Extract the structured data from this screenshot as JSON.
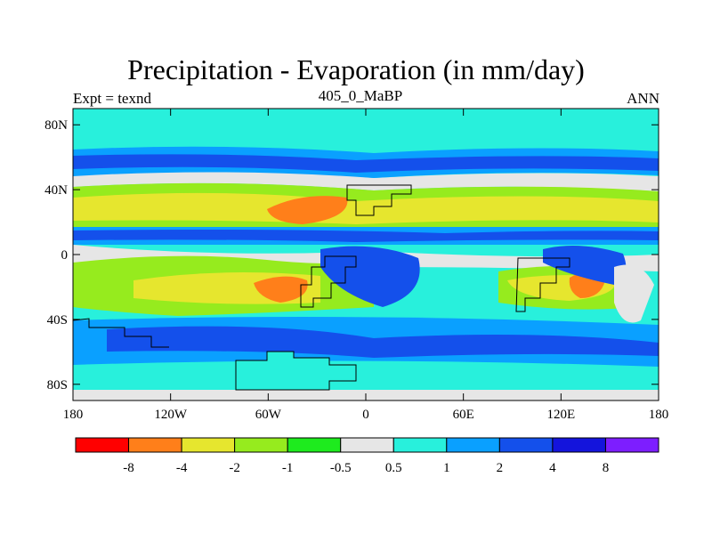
{
  "header": {
    "title": "Precipitation - Evaporation (in mm/day)",
    "left_label": "Expt = texnd",
    "center_label": "405_0_MaBP",
    "right_label": "ANN"
  },
  "chart_data": {
    "type": "heatmap",
    "title": "Precipitation - Evaporation (in mm/day)",
    "subtitle": "405_0_MaBP",
    "x_ticks": [
      "180",
      "120W",
      "60W",
      "0",
      "60E",
      "120E",
      "180"
    ],
    "y_ticks": [
      "80N",
      "40N",
      "0",
      "40S",
      "80S"
    ],
    "x_range": [
      -180,
      180
    ],
    "y_range": [
      -90,
      90
    ],
    "colorbar": {
      "labels": [
        "-8",
        "-4",
        "-2",
        "-1",
        "-0.5",
        "0.5",
        "1",
        "2",
        "4",
        "8"
      ],
      "colors": [
        "#ff0000",
        "#ff7f1a",
        "#e6e62e",
        "#96eb1e",
        "#1eeb1e",
        "#e6e6e6",
        "#28f0dc",
        "#0aa0ff",
        "#1450eb",
        "#1414dc",
        "#7d1eff"
      ]
    }
  }
}
